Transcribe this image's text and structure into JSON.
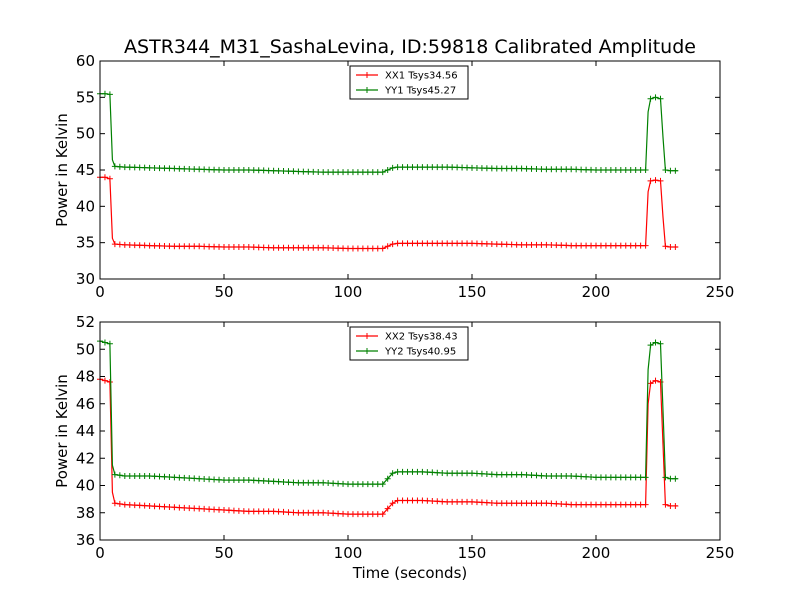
{
  "figure": {
    "title": "ASTR344_M31_SashaLevina, ID:59818 Calibrated Amplitude",
    "xlabel": "Time (seconds)"
  },
  "chart_data": [
    {
      "type": "line",
      "ylabel": "Power in Kelvin",
      "xlim": [
        0,
        250
      ],
      "ylim": [
        30,
        60
      ],
      "xticks": [
        0,
        50,
        100,
        150,
        200,
        250
      ],
      "yticks": [
        30,
        35,
        40,
        45,
        50,
        55,
        60
      ],
      "legend_position": "top-center",
      "grid": false,
      "series": [
        {
          "name": "XX1 Tsys34.56",
          "color": "#ff0000",
          "marker": "+",
          "points": [
            [
              0,
              44.0
            ],
            [
              2,
              44.0
            ],
            [
              4,
              43.8
            ],
            [
              5,
              35.6
            ],
            [
              6,
              34.8
            ],
            [
              10,
              34.7
            ],
            [
              20,
              34.6
            ],
            [
              30,
              34.5
            ],
            [
              40,
              34.5
            ],
            [
              50,
              34.4
            ],
            [
              60,
              34.4
            ],
            [
              70,
              34.3
            ],
            [
              80,
              34.3
            ],
            [
              90,
              34.3
            ],
            [
              100,
              34.2
            ],
            [
              110,
              34.2
            ],
            [
              114,
              34.2
            ],
            [
              116,
              34.5
            ],
            [
              118,
              34.8
            ],
            [
              120,
              34.9
            ],
            [
              130,
              34.9
            ],
            [
              140,
              34.9
            ],
            [
              150,
              34.9
            ],
            [
              160,
              34.8
            ],
            [
              170,
              34.7
            ],
            [
              180,
              34.7
            ],
            [
              190,
              34.6
            ],
            [
              200,
              34.6
            ],
            [
              210,
              34.6
            ],
            [
              220,
              34.6
            ],
            [
              221,
              42.0
            ],
            [
              222,
              43.5
            ],
            [
              224,
              43.6
            ],
            [
              226,
              43.5
            ],
            [
              227,
              38.5
            ],
            [
              228,
              34.5
            ],
            [
              230,
              34.4
            ],
            [
              233,
              34.4
            ]
          ]
        },
        {
          "name": "YY1 Tsys45.27",
          "color": "#008000",
          "marker": "+",
          "points": [
            [
              0,
              55.5
            ],
            [
              2,
              55.5
            ],
            [
              4,
              55.4
            ],
            [
              5,
              46.4
            ],
            [
              6,
              45.5
            ],
            [
              10,
              45.4
            ],
            [
              20,
              45.3
            ],
            [
              30,
              45.2
            ],
            [
              40,
              45.1
            ],
            [
              50,
              45.0
            ],
            [
              60,
              45.0
            ],
            [
              70,
              44.9
            ],
            [
              80,
              44.8
            ],
            [
              90,
              44.7
            ],
            [
              100,
              44.7
            ],
            [
              110,
              44.7
            ],
            [
              114,
              44.7
            ],
            [
              116,
              45.0
            ],
            [
              118,
              45.3
            ],
            [
              120,
              45.4
            ],
            [
              130,
              45.4
            ],
            [
              140,
              45.4
            ],
            [
              150,
              45.3
            ],
            [
              160,
              45.2
            ],
            [
              170,
              45.2
            ],
            [
              180,
              45.1
            ],
            [
              190,
              45.1
            ],
            [
              200,
              45.0
            ],
            [
              210,
              45.0
            ],
            [
              220,
              45.0
            ],
            [
              221,
              53.0
            ],
            [
              222,
              54.8
            ],
            [
              224,
              55.0
            ],
            [
              226,
              54.8
            ],
            [
              227,
              49.5
            ],
            [
              228,
              45.0
            ],
            [
              230,
              44.9
            ],
            [
              233,
              44.9
            ]
          ]
        }
      ]
    },
    {
      "type": "line",
      "ylabel": "Power in Kelvin",
      "xlim": [
        0,
        250
      ],
      "ylim": [
        36,
        52
      ],
      "xticks": [
        0,
        50,
        100,
        150,
        200,
        250
      ],
      "yticks": [
        36,
        38,
        40,
        42,
        44,
        46,
        48,
        50,
        52
      ],
      "legend_position": "top-center",
      "grid": false,
      "series": [
        {
          "name": "XX2 Tsys38.43",
          "color": "#ff0000",
          "marker": "+",
          "points": [
            [
              0,
              47.8
            ],
            [
              2,
              47.7
            ],
            [
              4,
              47.6
            ],
            [
              5,
              39.5
            ],
            [
              6,
              38.7
            ],
            [
              10,
              38.6
            ],
            [
              20,
              38.5
            ],
            [
              30,
              38.4
            ],
            [
              40,
              38.3
            ],
            [
              50,
              38.2
            ],
            [
              60,
              38.1
            ],
            [
              70,
              38.1
            ],
            [
              80,
              38.0
            ],
            [
              90,
              38.0
            ],
            [
              100,
              37.9
            ],
            [
              110,
              37.9
            ],
            [
              114,
              37.9
            ],
            [
              116,
              38.3
            ],
            [
              118,
              38.7
            ],
            [
              120,
              38.9
            ],
            [
              130,
              38.9
            ],
            [
              140,
              38.8
            ],
            [
              150,
              38.8
            ],
            [
              160,
              38.7
            ],
            [
              170,
              38.7
            ],
            [
              180,
              38.7
            ],
            [
              190,
              38.6
            ],
            [
              200,
              38.6
            ],
            [
              210,
              38.6
            ],
            [
              220,
              38.6
            ],
            [
              221,
              46.0
            ],
            [
              222,
              47.5
            ],
            [
              224,
              47.7
            ],
            [
              226,
              47.6
            ],
            [
              227,
              43.0
            ],
            [
              228,
              38.6
            ],
            [
              230,
              38.5
            ],
            [
              233,
              38.5
            ]
          ]
        },
        {
          "name": "YY2 Tsys40.95",
          "color": "#008000",
          "marker": "+",
          "points": [
            [
              0,
              50.6
            ],
            [
              2,
              50.5
            ],
            [
              4,
              50.4
            ],
            [
              5,
              41.5
            ],
            [
              6,
              40.8
            ],
            [
              10,
              40.7
            ],
            [
              20,
              40.7
            ],
            [
              30,
              40.6
            ],
            [
              40,
              40.5
            ],
            [
              50,
              40.4
            ],
            [
              60,
              40.4
            ],
            [
              70,
              40.3
            ],
            [
              80,
              40.2
            ],
            [
              90,
              40.2
            ],
            [
              100,
              40.1
            ],
            [
              110,
              40.1
            ],
            [
              114,
              40.1
            ],
            [
              116,
              40.5
            ],
            [
              118,
              40.9
            ],
            [
              120,
              41.0
            ],
            [
              130,
              41.0
            ],
            [
              140,
              40.9
            ],
            [
              150,
              40.9
            ],
            [
              160,
              40.8
            ],
            [
              170,
              40.8
            ],
            [
              180,
              40.7
            ],
            [
              190,
              40.7
            ],
            [
              200,
              40.6
            ],
            [
              210,
              40.6
            ],
            [
              220,
              40.6
            ],
            [
              221,
              48.5
            ],
            [
              222,
              50.3
            ],
            [
              224,
              50.5
            ],
            [
              226,
              50.4
            ],
            [
              227,
              45.5
            ],
            [
              228,
              40.6
            ],
            [
              230,
              40.5
            ],
            [
              233,
              40.5
            ]
          ]
        }
      ]
    }
  ]
}
